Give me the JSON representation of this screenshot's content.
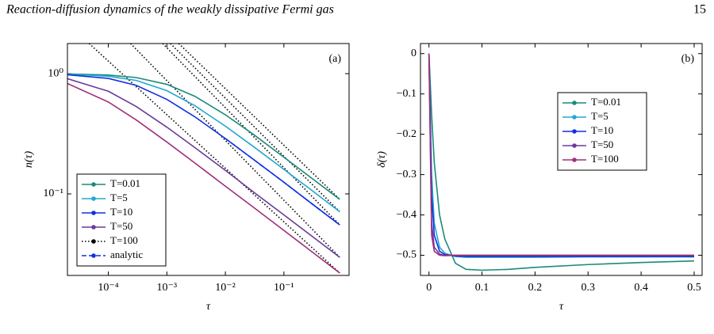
{
  "header": {
    "title": "Reaction-diffusion dynamics of the weakly dissipative Fermi gas",
    "page": "15"
  },
  "chart_data": [
    {
      "type": "line",
      "panel": "(a)",
      "xlabel": "τ",
      "ylabel": "n(τ)",
      "xscale": "log",
      "yscale": "log",
      "xlim": [
        2e-05,
        1.3
      ],
      "ylim": [
        0.021,
        1.78
      ],
      "xticks": [
        {
          "value": 0.0001,
          "label": "10⁻⁴"
        },
        {
          "value": 0.001,
          "label": "10⁻³"
        },
        {
          "value": 0.01,
          "label": "10⁻²"
        },
        {
          "value": 0.1,
          "label": "10⁻¹"
        }
      ],
      "yticks": [
        {
          "value": 0.1,
          "label": "10⁻¹"
        },
        {
          "value": 1,
          "label": "10⁰"
        }
      ],
      "grid": false,
      "legend": "lower left",
      "x": [
        2e-05,
        0.0001,
        0.0003,
        0.001,
        0.003,
        0.01,
        0.03,
        0.1,
        0.3,
        0.9
      ],
      "series": [
        {
          "name": "T=0.01",
          "color": "#1a8a7a",
          "values": [
            0.995,
            0.974,
            0.928,
            0.815,
            0.649,
            0.455,
            0.313,
            0.202,
            0.135,
            0.0902
          ]
        },
        {
          "name": "T=5",
          "color": "#20a8d0",
          "values": [
            0.99,
            0.952,
            0.878,
            0.722,
            0.542,
            0.366,
            0.248,
            0.16,
            0.107,
            0.0711
          ]
        },
        {
          "name": "T=10",
          "color": "#1030e0",
          "values": [
            0.98,
            0.913,
            0.799,
            0.611,
            0.438,
            0.289,
            0.194,
            0.125,
            0.083,
            0.0553
          ]
        },
        {
          "name": "T=50",
          "color": "#6a3a9a",
          "values": [
            0.908,
            0.714,
            0.533,
            0.359,
            0.243,
            0.157,
            0.104,
            0.0669,
            0.0446,
            0.0297
          ]
        },
        {
          "name": "T=100",
          "color": "#a0307a",
          "legend_color": "#000000",
          "legend_dash": "dotted",
          "values": [
            0.828,
            0.581,
            0.412,
            0.27,
            0.181,
            0.116,
            0.0776,
            0.0497,
            0.0331,
            0.022
          ]
        },
        {
          "name": "analytic",
          "color": "#1030e0",
          "dash": "dashed",
          "values": [
            null,
            null,
            null,
            null,
            null,
            0.289,
            0.194,
            0.125,
            0.083,
            0.0553
          ]
        }
      ],
      "asymptotes": [
        {
          "x": [
            4.7e-05,
            0.9
          ],
          "values": [
            1.78,
            0.022
          ]
        },
        {
          "x": [
            0.00024,
            0.9
          ],
          "values": [
            1.78,
            0.0297
          ]
        },
        {
          "x": [
            0.00085,
            0.9
          ],
          "values": [
            1.78,
            0.0553
          ]
        },
        {
          "x": [
            0.00115,
            0.9
          ],
          "values": [
            1.78,
            0.0711
          ]
        },
        {
          "x": [
            0.0016,
            0.9
          ],
          "values": [
            1.78,
            0.0902
          ]
        }
      ]
    },
    {
      "type": "line",
      "panel": "(b)",
      "xlabel": "τ",
      "ylabel": "δ(τ)",
      "xlim": [
        -0.016,
        0.515
      ],
      "ylim": [
        -0.55,
        0.025
      ],
      "xticks": [
        0,
        0.1,
        0.2,
        0.3,
        0.4,
        0.5
      ],
      "yticks": [
        0,
        {
          "value": -0.1,
          "label": "−0.1"
        },
        {
          "value": -0.2,
          "label": "−0.2"
        },
        {
          "value": -0.3,
          "label": "−0.3"
        },
        {
          "value": -0.4,
          "label": "−0.4"
        },
        {
          "value": -0.5,
          "label": "−0.5"
        }
      ],
      "grid": false,
      "legend": "upper right",
      "x": [
        0,
        0.005,
        0.01,
        0.02,
        0.03,
        0.05,
        0.07,
        0.1,
        0.15,
        0.2,
        0.3,
        0.4,
        0.5
      ],
      "series": [
        {
          "name": "T=0.01",
          "color": "#1a8a7a",
          "values": [
            0,
            -0.15,
            -0.27,
            -0.4,
            -0.46,
            -0.52,
            -0.535,
            -0.537,
            -0.535,
            -0.53,
            -0.523,
            -0.518,
            -0.514
          ]
        },
        {
          "name": "T=5",
          "color": "#20a8d0",
          "values": [
            0,
            -0.3,
            -0.42,
            -0.48,
            -0.495,
            -0.503,
            -0.505,
            -0.505,
            -0.505,
            -0.505,
            -0.504,
            -0.504,
            -0.504
          ]
        },
        {
          "name": "T=10",
          "color": "#1030e0",
          "values": [
            0,
            -0.35,
            -0.45,
            -0.49,
            -0.498,
            -0.502,
            -0.503,
            -0.503,
            -0.503,
            -0.503,
            -0.503,
            -0.503,
            -0.503
          ]
        },
        {
          "name": "T=50",
          "color": "#6a3a9a",
          "values": [
            0,
            -0.42,
            -0.48,
            -0.497,
            -0.5,
            -0.5,
            -0.5,
            -0.5,
            -0.5,
            -0.5,
            -0.5,
            -0.5,
            -0.5
          ]
        },
        {
          "name": "T=100",
          "color": "#a0307a",
          "values": [
            0,
            -0.45,
            -0.49,
            -0.5,
            -0.501,
            -0.5,
            -0.5,
            -0.5,
            -0.5,
            -0.5,
            -0.5,
            -0.5,
            -0.5
          ]
        }
      ]
    }
  ]
}
